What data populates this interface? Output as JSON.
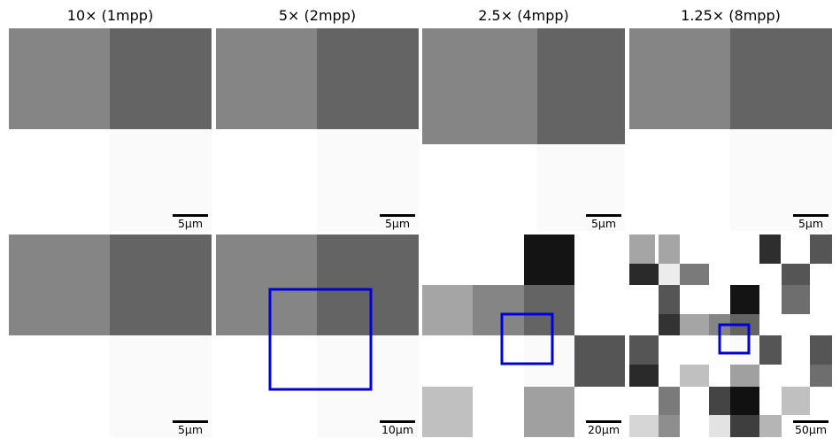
{
  "columns": [
    {
      "title": "10× (1mpp)"
    },
    {
      "title": "5× (2mpp)"
    },
    {
      "title": "2.5× (4mpp)"
    },
    {
      "title": "1.25× (8mpp)"
    }
  ],
  "colors": {
    "mid_gray": "#858585",
    "dark_gray": "#646464",
    "near_white": "#fafafa",
    "white": "#ffffff",
    "box": "#0000dd",
    "scalebar": "#000000"
  },
  "rows": [
    {
      "panels": [
        {
          "scalebar": "5µm"
        },
        {
          "scalebar": "5µm"
        },
        {
          "scalebar": "5µm"
        },
        {
          "scalebar": "5µm"
        }
      ]
    },
    {
      "panels": [
        {
          "scalebar": "5µm"
        },
        {
          "scalebar": "10µm"
        },
        {
          "scalebar": "20µm"
        },
        {
          "scalebar": "50µm"
        }
      ]
    }
  ]
}
